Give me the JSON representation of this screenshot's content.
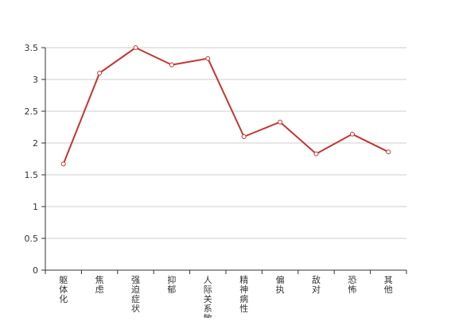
{
  "chart_data": {
    "type": "line",
    "categories": [
      "躯体化",
      "焦虑",
      "强迫症状",
      "抑郁",
      "人际关系敏感",
      "精神病性",
      "偏执",
      "敌对",
      "恐怖",
      "其他"
    ],
    "series": [
      {
        "values": [
          1.67,
          3.1,
          3.5,
          3.23,
          3.33,
          2.1,
          2.33,
          1.83,
          2.14,
          1.86
        ],
        "color": "#c23531"
      }
    ],
    "ylim": [
      0,
      3.5
    ],
    "yticks": [
      "0",
      "0.5",
      "1",
      "1.5",
      "2",
      "2.5",
      "3",
      "3.5"
    ],
    "grid": true,
    "legend": false,
    "title": "",
    "xlabel": "",
    "ylabel": ""
  }
}
